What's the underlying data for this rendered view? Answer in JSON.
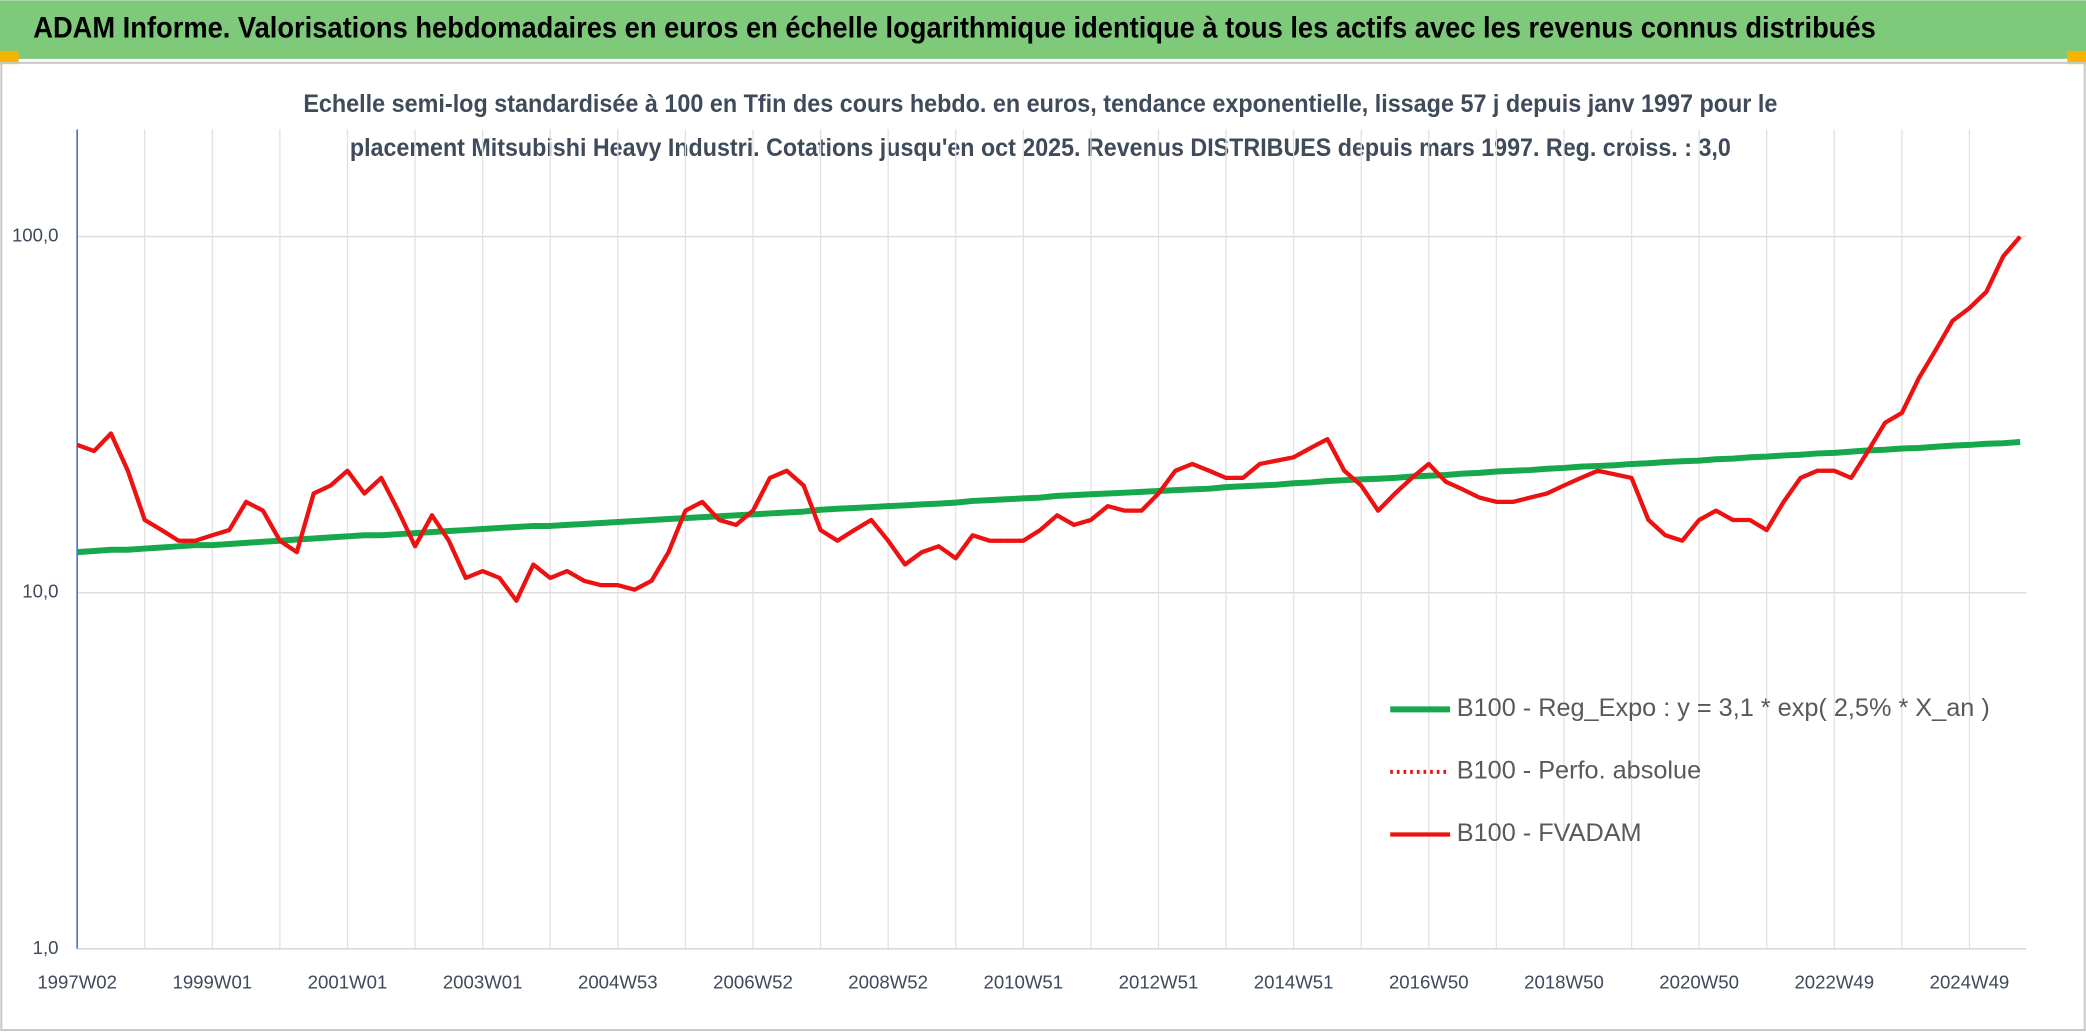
{
  "chart_data": {
    "type": "line",
    "header": "ADAM Informe. Valorisations hebdomadaires en euros en échelle logarithmique identique à tous les actifs avec les revenus connus distribués",
    "subtitle": [
      "Echelle semi-log standardisée à 100 en Tfin des cours hebdo. en euros, tendance exponentielle, lissage 57 j depuis janv 1997 pour le",
      "placement Mitsubishi Heavy Industri. Cotations jusqu'en oct 2025. Revenus DISTRIBUES depuis mars 1997. Reg. croiss. : 3,0"
    ],
    "categories": [
      "1997W02",
      null,
      null,
      null,
      null,
      null,
      null,
      null,
      "1999W01",
      null,
      null,
      null,
      null,
      null,
      null,
      null,
      "2001W01",
      null,
      null,
      null,
      null,
      null,
      null,
      null,
      "2003W01",
      null,
      null,
      null,
      null,
      null,
      null,
      null,
      "2004W53",
      null,
      null,
      null,
      null,
      null,
      null,
      null,
      "2006W52",
      null,
      null,
      null,
      null,
      null,
      null,
      null,
      "2008W52",
      null,
      null,
      null,
      null,
      null,
      null,
      null,
      "2010W51",
      null,
      null,
      null,
      null,
      null,
      null,
      null,
      "2012W51",
      null,
      null,
      null,
      null,
      null,
      null,
      null,
      "2014W51",
      null,
      null,
      null,
      null,
      null,
      null,
      null,
      "2016W50",
      null,
      null,
      null,
      null,
      null,
      null,
      null,
      "2018W50",
      null,
      null,
      null,
      null,
      null,
      null,
      null,
      "2020W50",
      null,
      null,
      null,
      null,
      null,
      null,
      null,
      "2022W49",
      null,
      null,
      null,
      null,
      null,
      null,
      null,
      "2024W49",
      null,
      null,
      null
    ],
    "log_scale": true,
    "ylim": [
      1,
      200
    ],
    "yticks": [
      {
        "value": 1,
        "label": "1,0"
      },
      {
        "value": 10,
        "label": "10,0"
      },
      {
        "value": 100,
        "label": "100,0"
      }
    ],
    "grid": true,
    "legend": "lower right",
    "series": [
      {
        "name": "B100 - Reg_Expo : y = 3,1 * exp( 2,5% *  X_an )",
        "color": "#17a84b",
        "style": "solid",
        "values": [
          13.0,
          13.1,
          13.2,
          13.2,
          13.3,
          13.4,
          13.5,
          13.6,
          13.6,
          13.7,
          13.8,
          13.9,
          14.0,
          14.1,
          14.2,
          14.3,
          14.4,
          14.5,
          14.5,
          14.6,
          14.7,
          14.8,
          14.9,
          15.0,
          15.1,
          15.2,
          15.3,
          15.4,
          15.4,
          15.5,
          15.6,
          15.7,
          15.8,
          15.9,
          16.0,
          16.1,
          16.2,
          16.3,
          16.4,
          16.5,
          16.6,
          16.7,
          16.8,
          16.9,
          17.1,
          17.2,
          17.3,
          17.4,
          17.5,
          17.6,
          17.7,
          17.8,
          17.9,
          18.1,
          18.2,
          18.3,
          18.4,
          18.5,
          18.7,
          18.8,
          18.9,
          19.0,
          19.1,
          19.2,
          19.3,
          19.4,
          19.5,
          19.6,
          19.8,
          19.9,
          20.0,
          20.1,
          20.3,
          20.4,
          20.6,
          20.7,
          20.8,
          20.9,
          21.0,
          21.2,
          21.3,
          21.4,
          21.6,
          21.7,
          21.9,
          22.0,
          22.1,
          22.3,
          22.4,
          22.6,
          22.7,
          22.8,
          23.0,
          23.1,
          23.3,
          23.4,
          23.5,
          23.7,
          23.8,
          24.0,
          24.1,
          24.3,
          24.4,
          24.6,
          24.7,
          24.9,
          25.1,
          25.2,
          25.4,
          25.5,
          25.7,
          25.9,
          26.0,
          26.2,
          26.3,
          26.5
        ]
      },
      {
        "name": "B100 - Perfo. absolue",
        "color": "#ee1111",
        "style": "dotted",
        "values": [
          26,
          25,
          28,
          22,
          16,
          15,
          14,
          14,
          14.5,
          15,
          18,
          17,
          14,
          13,
          19,
          20,
          22,
          19,
          21,
          17,
          13.5,
          16.5,
          14,
          11,
          11.5,
          11,
          9.5,
          12,
          11,
          11.5,
          10.8,
          10.5,
          10.5,
          10.2,
          10.8,
          13,
          17,
          18,
          16,
          15.5,
          17,
          21,
          22,
          20,
          15,
          14,
          15,
          16,
          14,
          12,
          13,
          13.5,
          12.5,
          14.5,
          14,
          14,
          14,
          15,
          16.5,
          15.5,
          16,
          17.5,
          17,
          17,
          19,
          22,
          23,
          22,
          21,
          21,
          23,
          23.5,
          24,
          25.5,
          27,
          22,
          20,
          17,
          19,
          21,
          23,
          20.5,
          19.5,
          18.5,
          18,
          18,
          18.5,
          19,
          20,
          21,
          22,
          21.5,
          21,
          16,
          14.5,
          14,
          16,
          17,
          16,
          16,
          15,
          18,
          21,
          22,
          22,
          21,
          25,
          30,
          32,
          40,
          48,
          58,
          63,
          70,
          88,
          100
        ]
      },
      {
        "name": "B100 - FVADAM",
        "color": "#ee1111",
        "style": "solid",
        "values": [
          26,
          25,
          28,
          22,
          16,
          15,
          14,
          14,
          14.5,
          15,
          18,
          17,
          14,
          13,
          19,
          20,
          22,
          19,
          21,
          17,
          13.5,
          16.5,
          14,
          11,
          11.5,
          11,
          9.5,
          12,
          11,
          11.5,
          10.8,
          10.5,
          10.5,
          10.2,
          10.8,
          13,
          17,
          18,
          16,
          15.5,
          17,
          21,
          22,
          20,
          15,
          14,
          15,
          16,
          14,
          12,
          13,
          13.5,
          12.5,
          14.5,
          14,
          14,
          14,
          15,
          16.5,
          15.5,
          16,
          17.5,
          17,
          17,
          19,
          22,
          23,
          22,
          21,
          21,
          23,
          23.5,
          24,
          25.5,
          27,
          22,
          20,
          17,
          19,
          21,
          23,
          20.5,
          19.5,
          18.5,
          18,
          18,
          18.5,
          19,
          20,
          21,
          22,
          21.5,
          21,
          16,
          14.5,
          14,
          16,
          17,
          16,
          16,
          15,
          18,
          21,
          22,
          22,
          21,
          25,
          30,
          32,
          40,
          48,
          58,
          63,
          70,
          88,
          100
        ]
      }
    ]
  }
}
